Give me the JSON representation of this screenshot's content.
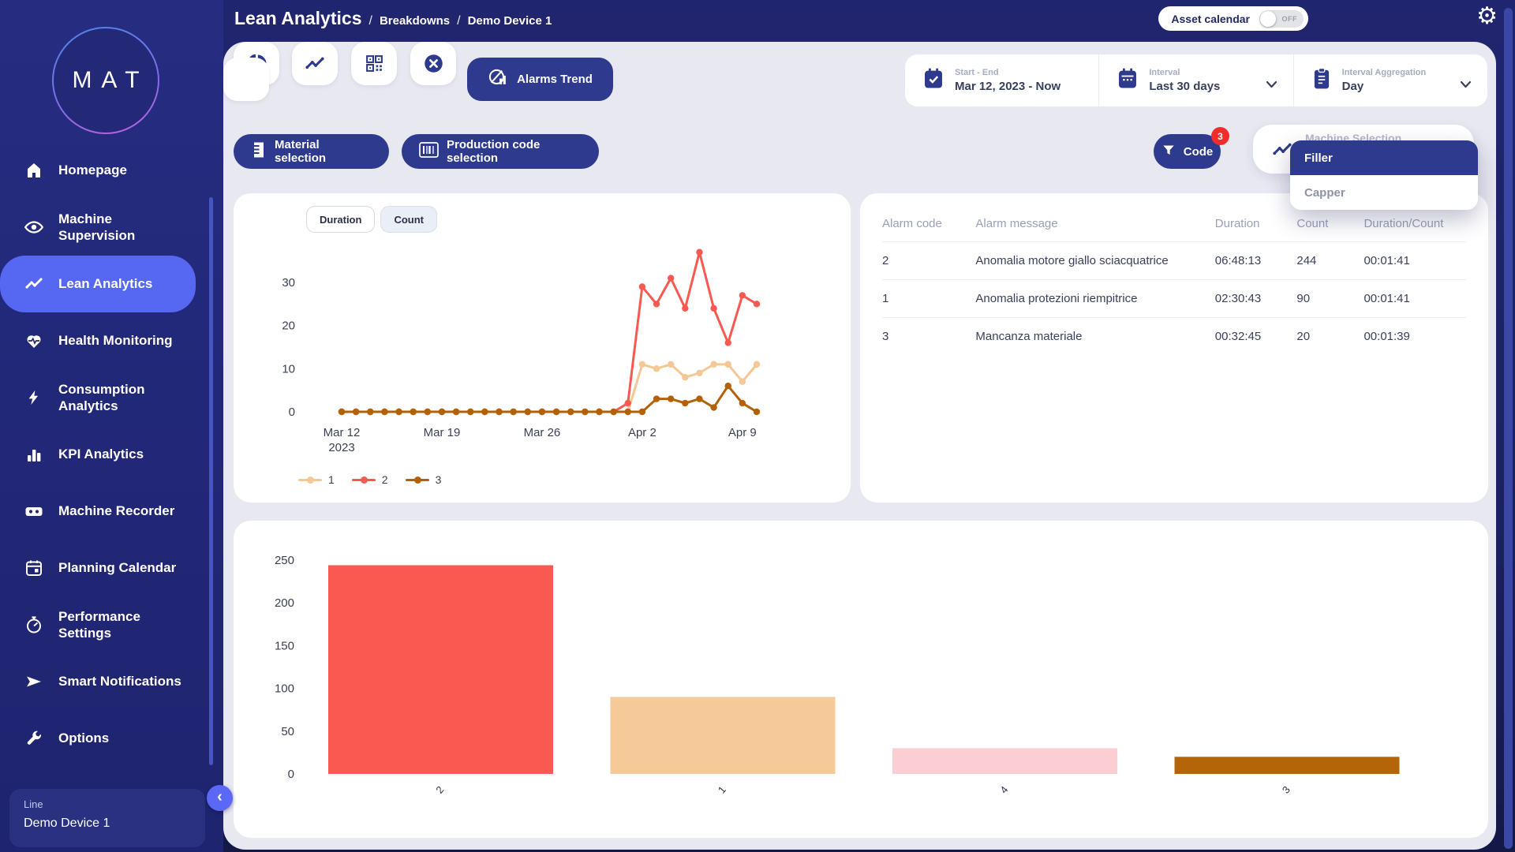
{
  "app": {
    "logo_text": "MAT"
  },
  "header": {
    "title": "Lean Analytics",
    "breadcrumbs": [
      "Breakdowns",
      "Demo Device 1"
    ],
    "asset_calendar": {
      "label": "Asset calendar",
      "state": "OFF"
    }
  },
  "sidebar": {
    "items": [
      {
        "label": "Homepage",
        "icon": "home",
        "active": false
      },
      {
        "label": "Machine Supervision",
        "icon": "eye",
        "active": false
      },
      {
        "label": "Lean Analytics",
        "icon": "trend",
        "active": true
      },
      {
        "label": "Health Monitoring",
        "icon": "heart",
        "active": false
      },
      {
        "label": "Consumption Analytics",
        "icon": "bolt",
        "active": false
      },
      {
        "label": "KPI Analytics",
        "icon": "kpi",
        "active": false
      },
      {
        "label": "Machine Recorder",
        "icon": "recorder",
        "active": false
      },
      {
        "label": "Planning Calendar",
        "icon": "calendar",
        "active": false
      },
      {
        "label": "Performance Settings",
        "icon": "gauge",
        "active": false
      },
      {
        "label": "Smart Notifications",
        "icon": "send",
        "active": false
      },
      {
        "label": "Options",
        "icon": "wrench",
        "active": false
      }
    ],
    "device_card": {
      "label": "Line",
      "value": "Demo Device 1"
    }
  },
  "toolbar": {
    "view_buttons": [
      {
        "icon": "pie"
      },
      {
        "icon": "trend"
      },
      {
        "icon": "qr"
      },
      {
        "icon": "close"
      }
    ],
    "active_view": {
      "icon": "alarms-trend",
      "label": "Alarms Trend"
    }
  },
  "date_controls": {
    "start_end": {
      "icon": "calendar-check",
      "label": "Start - End",
      "value": "Mar 12, 2023 - Now"
    },
    "interval": {
      "icon": "calendar",
      "label": "Interval",
      "value": "Last 30 days"
    },
    "aggregation": {
      "icon": "clipboard",
      "label": "Interval Aggregation",
      "value": "Day"
    }
  },
  "filter_row": {
    "material_button": "Material selection",
    "production_button": "Production code selection",
    "code_button": {
      "label": "Code",
      "badge": "3"
    },
    "machine_selection": {
      "label": "Machine Selection",
      "options": [
        "Filler",
        "Capper"
      ],
      "selected": "Filler"
    }
  },
  "trend_card": {
    "toggles": [
      "Duration",
      "Count"
    ],
    "active_toggle": "Duration"
  },
  "alarm_table": {
    "columns": [
      "Alarm code",
      "Alarm message",
      "Duration",
      "Count",
      "Duration/Count"
    ],
    "rows": [
      {
        "code": "2",
        "message": "Anomalia motore giallo sciacquatrice",
        "duration": "06:48:13",
        "count": "244",
        "duration_count": "00:01:41"
      },
      {
        "code": "1",
        "message": "Anomalia protezioni riempitrice",
        "duration": "02:30:43",
        "count": "90",
        "duration_count": "00:01:41"
      },
      {
        "code": "3",
        "message": "Mancanza materiale",
        "duration": "00:32:45",
        "count": "20",
        "duration_count": "00:01:39"
      }
    ]
  },
  "chart_data": [
    {
      "type": "line",
      "x": [
        "Mar 12",
        "Mar 13",
        "Mar 14",
        "Mar 15",
        "Mar 16",
        "Mar 17",
        "Mar 18",
        "Mar 19",
        "Mar 20",
        "Mar 21",
        "Mar 22",
        "Mar 23",
        "Mar 24",
        "Mar 25",
        "Mar 26",
        "Mar 27",
        "Mar 28",
        "Mar 29",
        "Mar 30",
        "Mar 31",
        "Apr 1",
        "Apr 2",
        "Apr 3",
        "Apr 4",
        "Apr 5",
        "Apr 6",
        "Apr 7",
        "Apr 8",
        "Apr 9",
        "Apr 10"
      ],
      "series": [
        {
          "name": "1",
          "color": "#f5c795",
          "values": [
            0,
            0,
            0,
            0,
            0,
            0,
            0,
            0,
            0,
            0,
            0,
            0,
            0,
            0,
            0,
            0,
            0,
            0,
            0,
            0,
            0,
            11,
            10,
            11,
            8,
            9,
            11,
            11,
            7,
            11
          ]
        },
        {
          "name": "2",
          "color": "#f95950",
          "values": [
            0,
            0,
            0,
            0,
            0,
            0,
            0,
            0,
            0,
            0,
            0,
            0,
            0,
            0,
            0,
            0,
            0,
            0,
            0,
            0,
            2,
            29,
            25,
            31,
            24,
            37,
            24,
            16,
            27,
            25
          ]
        },
        {
          "name": "3",
          "color": "#b26106",
          "values": [
            0,
            0,
            0,
            0,
            0,
            0,
            0,
            0,
            0,
            0,
            0,
            0,
            0,
            0,
            0,
            0,
            0,
            0,
            0,
            0,
            0,
            0,
            3,
            3,
            2,
            3,
            1,
            6,
            2,
            0
          ]
        }
      ],
      "yticks": [
        0,
        10,
        20,
        30
      ],
      "ylim": [
        0,
        40
      ],
      "xticks": [
        {
          "index": 0,
          "lines": [
            "Mar 12",
            "2023"
          ]
        },
        {
          "index": 7,
          "lines": [
            "Mar 19"
          ]
        },
        {
          "index": 14,
          "lines": [
            "Mar 26"
          ]
        },
        {
          "index": 21,
          "lines": [
            "Apr 2"
          ]
        },
        {
          "index": 28,
          "lines": [
            "Apr 9"
          ]
        }
      ],
      "legend_position": "bottom",
      "grid": false
    },
    {
      "type": "bar",
      "categories": [
        "2",
        "1",
        "4",
        "3"
      ],
      "values": [
        244,
        90,
        30,
        20
      ],
      "colors": [
        "#f95950",
        "#f6c998",
        "#fbced3",
        "#b4650a"
      ],
      "yticks": [
        0,
        50,
        100,
        150,
        200,
        250
      ],
      "ylim": [
        0,
        250
      ],
      "grid": false
    }
  ],
  "colors": {
    "accent_indigo": "#2d3a8e",
    "active_nav": "#5667f1",
    "badge_red": "#f22c2c",
    "panel_gray": "#e8e8f1",
    "sidebar_navy": "#222879"
  }
}
